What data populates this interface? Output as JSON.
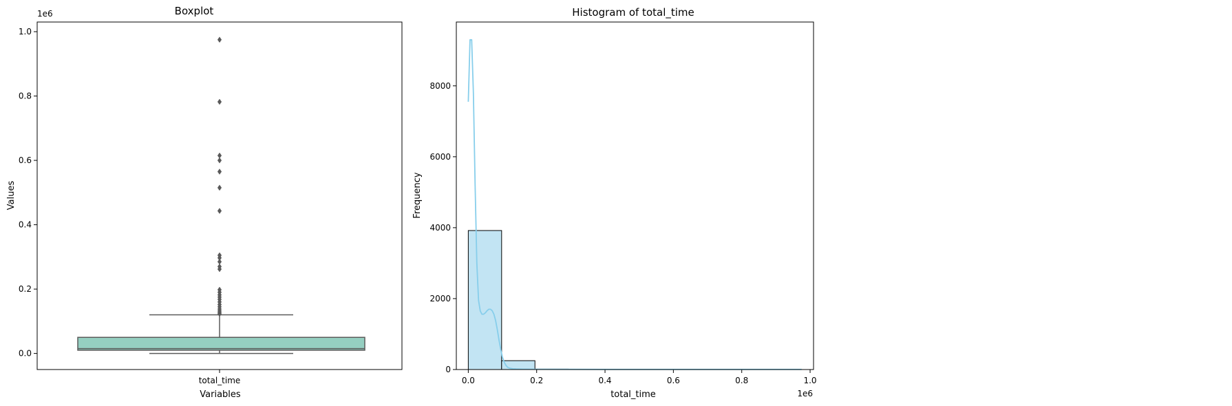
{
  "chart_data": [
    {
      "type": "box",
      "title": "Boxplot",
      "xlabel": "Variables",
      "ylabel": "Values",
      "y_offset_label": "1e6",
      "ylim": [
        -0.05,
        1.03
      ],
      "yticks": [
        {
          "value": 0.0,
          "label": "0.0"
        },
        {
          "value": 0.2,
          "label": "0.2"
        },
        {
          "value": 0.4,
          "label": "0.4"
        },
        {
          "value": 0.6,
          "label": "0.6"
        },
        {
          "value": 0.8,
          "label": "0.8"
        },
        {
          "value": 1.0,
          "label": "1.0"
        }
      ],
      "categories": [
        "total_time"
      ],
      "box": {
        "whisker_low": 0.0,
        "q1": 0.01,
        "median": 0.015,
        "q3": 0.05,
        "whisker_high": 0.12
      },
      "outliers": [
        0.975,
        0.782,
        0.615,
        0.6,
        0.565,
        0.515,
        0.443,
        0.305,
        0.297,
        0.285,
        0.27,
        0.262,
        0.198,
        0.19,
        0.182,
        0.175,
        0.168,
        0.16,
        0.152,
        0.145,
        0.138,
        0.132,
        0.127,
        0.123
      ],
      "box_color": "#95cfc1",
      "edge_color": "#5a5a5a"
    },
    {
      "type": "histogram",
      "title": "Histogram of total_time",
      "xlabel": "total_time",
      "ylabel": "Frequency",
      "x_offset_label": "1e6",
      "xlim": [
        -0.035,
        1.01
      ],
      "ylim": [
        0,
        9800
      ],
      "xticks": [
        {
          "value": 0.0,
          "label": "0.0"
        },
        {
          "value": 0.2,
          "label": "0.2"
        },
        {
          "value": 0.4,
          "label": "0.4"
        },
        {
          "value": 0.6,
          "label": "0.6"
        },
        {
          "value": 0.8,
          "label": "0.8"
        },
        {
          "value": 1.0,
          "label": "1.0"
        }
      ],
      "yticks": [
        {
          "value": 0,
          "label": "0"
        },
        {
          "value": 2000,
          "label": "2000"
        },
        {
          "value": 4000,
          "label": "4000"
        },
        {
          "value": 6000,
          "label": "6000"
        },
        {
          "value": 8000,
          "label": "8000"
        }
      ],
      "bins": [
        {
          "x0": 0.0,
          "x1": 0.0975,
          "count": 3920
        },
        {
          "x0": 0.0975,
          "x1": 0.195,
          "count": 250
        },
        {
          "x0": 0.195,
          "x1": 0.2925,
          "count": 12
        },
        {
          "x0": 0.2925,
          "x1": 0.39,
          "count": 4
        },
        {
          "x0": 0.39,
          "x1": 0.4875,
          "count": 2
        },
        {
          "x0": 0.4875,
          "x1": 0.585,
          "count": 3
        },
        {
          "x0": 0.585,
          "x1": 0.6825,
          "count": 3
        },
        {
          "x0": 0.6825,
          "x1": 0.78,
          "count": 0
        },
        {
          "x0": 0.78,
          "x1": 0.8775,
          "count": 1
        },
        {
          "x0": 0.8775,
          "x1": 0.975,
          "count": 1
        }
      ],
      "kde": {
        "x": [
          0.0,
          0.005,
          0.01,
          0.015,
          0.02,
          0.025,
          0.03,
          0.035,
          0.04,
          0.045,
          0.05,
          0.055,
          0.06,
          0.065,
          0.07,
          0.075,
          0.08,
          0.085,
          0.09,
          0.095,
          0.1,
          0.105,
          0.11,
          0.115,
          0.12,
          0.13,
          0.14,
          0.16,
          0.2,
          0.3,
          0.4,
          0.5,
          0.6,
          0.7,
          0.8,
          0.9,
          0.975
        ],
        "y": [
          7550,
          9300,
          9300,
          7800,
          5200,
          3000,
          1950,
          1650,
          1560,
          1560,
          1600,
          1660,
          1700,
          1700,
          1660,
          1560,
          1380,
          1120,
          820,
          560,
          350,
          210,
          120,
          65,
          40,
          22,
          15,
          10,
          7,
          5,
          4,
          4,
          4,
          3,
          3,
          3,
          3
        ]
      },
      "bar_color": "#c2e4f3",
      "line_color": "#87ceeb"
    }
  ]
}
